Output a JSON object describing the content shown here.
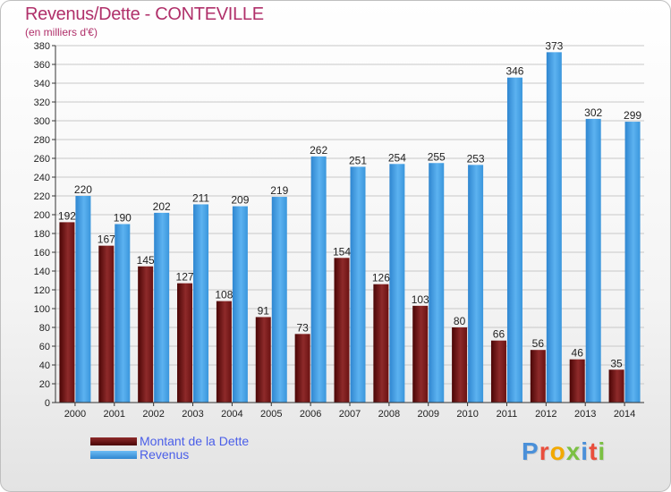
{
  "chart_data": {
    "type": "bar",
    "title": "Revenus/Dette - CONTEVILLE",
    "subtitle": "(en milliers d'€)",
    "categories": [
      "2000",
      "2001",
      "2002",
      "2003",
      "2004",
      "2005",
      "2006",
      "2007",
      "2008",
      "2009",
      "2010",
      "2011",
      "2012",
      "2013",
      "2014"
    ],
    "series": [
      {
        "name": "Montant de la Dette",
        "color": "#7a1a1a",
        "values": [
          192,
          167,
          145,
          127,
          108,
          91,
          73,
          154,
          126,
          103,
          80,
          66,
          56,
          46,
          35
        ]
      },
      {
        "name": "Revenus",
        "color": "#3d9be0",
        "values": [
          220,
          190,
          202,
          211,
          209,
          219,
          262,
          251,
          254,
          255,
          253,
          346,
          373,
          302,
          299
        ]
      }
    ],
    "ylim": [
      0,
      380
    ],
    "ytick_step": 20,
    "grid": true,
    "legend_position": "bottom-left"
  },
  "logo": {
    "text": "Proxiti",
    "colors": [
      "#4a90d9",
      "#e94e3c",
      "#f2a900",
      "#7bc043",
      "#4a90d9",
      "#e94e3c",
      "#7bc043"
    ]
  }
}
